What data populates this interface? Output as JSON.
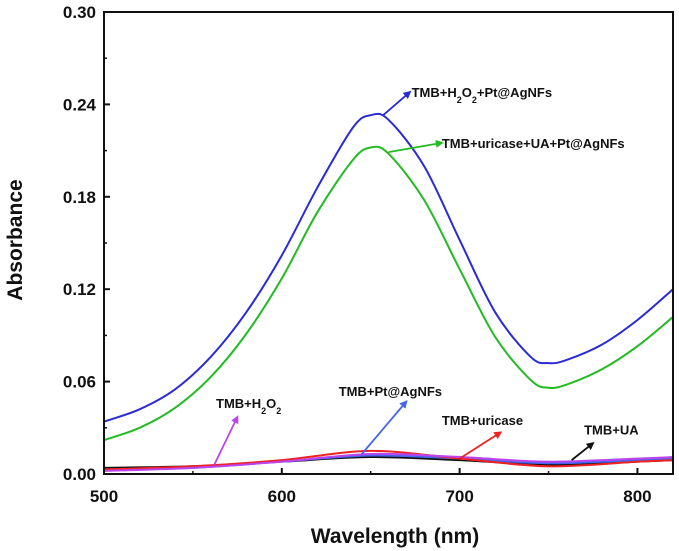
{
  "chart_data": {
    "type": "line",
    "xlabel": "Wavelength (nm)",
    "ylabel": "Absorbance",
    "xlim": [
      500,
      820
    ],
    "ylim": [
      0.0,
      0.3
    ],
    "x_ticks": [
      "500",
      "600",
      "700",
      "800"
    ],
    "y_ticks": [
      "0.00",
      "0.06",
      "0.12",
      "0.18",
      "0.24",
      "0.30"
    ],
    "grid": false,
    "legend": "none (inline annotations with arrows)",
    "series": [
      {
        "name": "TMB+H2O2+Pt@AgNFs",
        "label_parts": [
          "TMB+H",
          "2",
          "O",
          "2",
          "+Pt@AgNFs"
        ],
        "color": "#2a2ad8",
        "x": [
          500,
          520,
          540,
          560,
          580,
          600,
          620,
          640,
          650,
          660,
          680,
          700,
          720,
          740,
          750,
          760,
          780,
          800,
          820
        ],
        "y": [
          0.034,
          0.042,
          0.055,
          0.076,
          0.105,
          0.142,
          0.186,
          0.225,
          0.233,
          0.23,
          0.2,
          0.152,
          0.105,
          0.076,
          0.072,
          0.074,
          0.084,
          0.1,
          0.12
        ]
      },
      {
        "name": "TMB+uricase+UA+Pt@AgNFs",
        "color": "#22bb22",
        "x": [
          500,
          520,
          540,
          560,
          580,
          600,
          620,
          640,
          650,
          660,
          680,
          700,
          720,
          740,
          750,
          760,
          780,
          800,
          820
        ],
        "y": [
          0.022,
          0.03,
          0.043,
          0.063,
          0.091,
          0.127,
          0.17,
          0.204,
          0.212,
          0.208,
          0.178,
          0.133,
          0.089,
          0.061,
          0.056,
          0.058,
          0.068,
          0.083,
          0.102
        ]
      },
      {
        "name": "TMB+Pt@AgNFs",
        "color": "#4466ee",
        "x": [
          500,
          550,
          600,
          650,
          700,
          750,
          800,
          820
        ],
        "y": [
          0.003,
          0.004,
          0.008,
          0.012,
          0.01,
          0.007,
          0.009,
          0.01
        ]
      },
      {
        "name": "TMB+uricase",
        "color": "#ee2222",
        "x": [
          500,
          550,
          600,
          650,
          700,
          750,
          800,
          820
        ],
        "y": [
          0.003,
          0.005,
          0.009,
          0.015,
          0.01,
          0.005,
          0.008,
          0.009
        ]
      },
      {
        "name": "TMB+H2O2",
        "label_parts": [
          "TMB+H",
          "2",
          "O",
          "2",
          ""
        ],
        "color": "#bb44ee",
        "x": [
          500,
          550,
          600,
          650,
          700,
          750,
          800,
          820
        ],
        "y": [
          0.002,
          0.004,
          0.008,
          0.013,
          0.011,
          0.008,
          0.01,
          0.011
        ]
      },
      {
        "name": "TMB+UA",
        "color": "#111111",
        "x": [
          500,
          550,
          600,
          650,
          700,
          750,
          800,
          820
        ],
        "y": [
          0.004,
          0.005,
          0.008,
          0.011,
          0.009,
          0.006,
          0.008,
          0.009
        ]
      }
    ],
    "annotations": [
      {
        "series": 0,
        "arrow_from": [
          657,
          0.233
        ],
        "arrow_to": [
          672,
          0.248
        ],
        "text_at": [
          673,
          0.248
        ]
      },
      {
        "series": 1,
        "arrow_from": [
          660,
          0.209
        ],
        "arrow_to": [
          690,
          0.215
        ],
        "text_at": [
          690,
          0.215
        ]
      },
      {
        "series": 2,
        "arrow_from": [
          645,
          0.013
        ],
        "arrow_to": [
          670,
          0.047
        ],
        "text_at": [
          632,
          0.054
        ]
      },
      {
        "series": 3,
        "arrow_from": [
          700,
          0.01
        ],
        "arrow_to": [
          723,
          0.027
        ],
        "text_at": [
          690,
          0.035
        ]
      },
      {
        "series": 4,
        "arrow_from": [
          562,
          0.006
        ],
        "arrow_to": [
          575,
          0.037
        ],
        "text_at": [
          563,
          0.046
        ]
      },
      {
        "series": 5,
        "arrow_from": [
          763,
          0.009
        ],
        "arrow_to": [
          775,
          0.02
        ],
        "text_at": [
          770,
          0.029
        ]
      }
    ]
  }
}
